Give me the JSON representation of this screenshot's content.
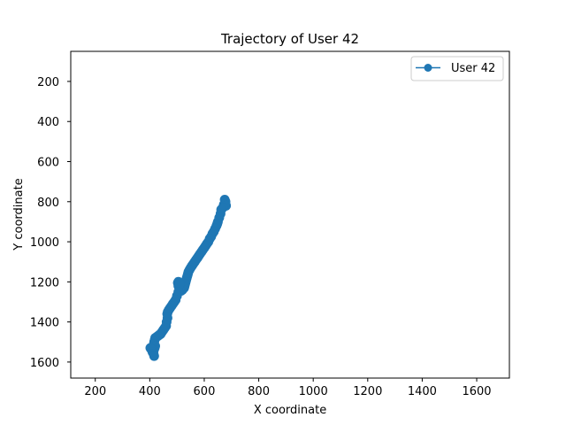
{
  "chart_data": {
    "type": "line",
    "title": "Trajectory of User 42",
    "xlabel": "X coordinate",
    "ylabel": "Y coordinate",
    "xlim": [
      110,
      1720
    ],
    "ylim": [
      1680,
      50
    ],
    "y_inverted": true,
    "xticks": [
      200,
      400,
      600,
      800,
      1000,
      1200,
      1400,
      1600
    ],
    "yticks": [
      200,
      400,
      600,
      800,
      1000,
      1200,
      1400,
      1600
    ],
    "legend_position": "top-right",
    "grid": false,
    "series": [
      {
        "name": "User 42",
        "color": "#1f77b4",
        "marker": "circle",
        "x": [
          675,
          678,
          672,
          680,
          668,
          662,
          660,
          655,
          650,
          648,
          645,
          640,
          635,
          630,
          625,
          620,
          615,
          610,
          605,
          600,
          595,
          590,
          585,
          580,
          575,
          570,
          565,
          560,
          555,
          550,
          546,
          542,
          540,
          538,
          536,
          534,
          532,
          530,
          528,
          526,
          520,
          515,
          510,
          505,
          503,
          505,
          510,
          505,
          500,
          495,
          490,
          485,
          480,
          475,
          470,
          466,
          464,
          465,
          462,
          460,
          455,
          450,
          445,
          440,
          435,
          430,
          425,
          420,
          418,
          416,
          415,
          420,
          418,
          415,
          412,
          410,
          405,
          402,
          408,
          410,
          414,
          416
        ],
        "y": [
          790,
          800,
          815,
          820,
          830,
          840,
          860,
          880,
          900,
          910,
          920,
          935,
          950,
          960,
          975,
          985,
          1000,
          1010,
          1020,
          1030,
          1040,
          1050,
          1060,
          1070,
          1080,
          1090,
          1100,
          1110,
          1120,
          1130,
          1140,
          1150,
          1160,
          1170,
          1180,
          1190,
          1200,
          1210,
          1220,
          1230,
          1240,
          1245,
          1235,
          1220,
          1205,
          1200,
          1210,
          1250,
          1270,
          1290,
          1300,
          1310,
          1320,
          1330,
          1340,
          1350,
          1360,
          1380,
          1400,
          1420,
          1430,
          1440,
          1450,
          1460,
          1465,
          1470,
          1475,
          1480,
          1490,
          1500,
          1510,
          1520,
          1530,
          1540,
          1550,
          1545,
          1535,
          1530,
          1540,
          1550,
          1560,
          1570
        ]
      }
    ]
  }
}
